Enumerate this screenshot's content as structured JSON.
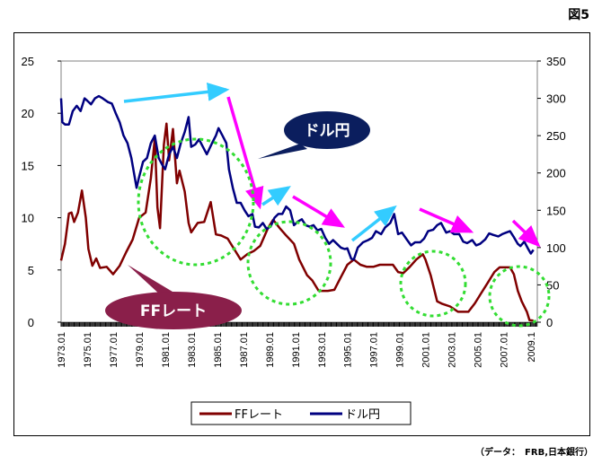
{
  "figure_label": "図5",
  "source_note": "（データ：　FRB,日本銀行）",
  "callouts": {
    "usdjpy": "ドル円",
    "ffrate": "FFレート"
  },
  "colors": {
    "ff": "#800000",
    "usdjpy": "#000080",
    "up_arrow": "#33ccff",
    "down_arrow": "#ff00ff",
    "circle": "#33dd33",
    "callout_navy": "#0b1e5e",
    "callout_maroon": "#8a1f4a"
  },
  "chart_data": {
    "type": "line",
    "x_tick_labels": [
      "1973.01",
      "1975.01",
      "1977.01",
      "1979.01",
      "1981.01",
      "1983.01",
      "1985.01",
      "1987.01",
      "1989.01",
      "1991.01",
      "1993.01",
      "1995.01",
      "1997.01",
      "1999.01",
      "2001.01",
      "2003.01",
      "2005.01",
      "2007.01",
      "2009.1"
    ],
    "y_left": {
      "ticks": [
        "0",
        "5",
        "10",
        "15",
        "20",
        "25"
      ],
      "ylim": [
        0,
        25
      ]
    },
    "y_right": {
      "ticks": [
        "0",
        "50",
        "100",
        "150",
        "200",
        "250",
        "300",
        "350"
      ],
      "ylim": [
        0,
        350
      ]
    },
    "xlim": [
      1973.0,
      2009.6
    ],
    "series": [
      {
        "name": "FFレート",
        "axis": "left",
        "points": [
          [
            1973.0,
            5.9
          ],
          [
            1973.3,
            7.5
          ],
          [
            1973.6,
            10.4
          ],
          [
            1973.8,
            10.5
          ],
          [
            1974.0,
            9.6
          ],
          [
            1974.3,
            10.5
          ],
          [
            1974.6,
            12.6
          ],
          [
            1974.9,
            10.0
          ],
          [
            1975.1,
            7.0
          ],
          [
            1975.4,
            5.4
          ],
          [
            1975.7,
            6.1
          ],
          [
            1976.0,
            5.2
          ],
          [
            1976.5,
            5.3
          ],
          [
            1977.0,
            4.6
          ],
          [
            1977.5,
            5.4
          ],
          [
            1978.0,
            6.7
          ],
          [
            1978.5,
            7.9
          ],
          [
            1979.0,
            10.0
          ],
          [
            1979.5,
            10.5
          ],
          [
            1979.9,
            13.8
          ],
          [
            1980.2,
            17.6
          ],
          [
            1980.4,
            11.0
          ],
          [
            1980.6,
            9.0
          ],
          [
            1980.9,
            17.0
          ],
          [
            1981.1,
            19.0
          ],
          [
            1981.3,
            15.5
          ],
          [
            1981.6,
            18.5
          ],
          [
            1981.9,
            13.3
          ],
          [
            1982.1,
            14.5
          ],
          [
            1982.5,
            12.5
          ],
          [
            1982.8,
            9.5
          ],
          [
            1983.0,
            8.6
          ],
          [
            1983.5,
            9.5
          ],
          [
            1984.0,
            9.6
          ],
          [
            1984.5,
            11.5
          ],
          [
            1984.9,
            8.4
          ],
          [
            1985.3,
            8.3
          ],
          [
            1985.8,
            8.0
          ],
          [
            1986.3,
            7.0
          ],
          [
            1986.8,
            6.0
          ],
          [
            1987.3,
            6.5
          ],
          [
            1987.8,
            6.8
          ],
          [
            1988.3,
            7.3
          ],
          [
            1988.9,
            9.0
          ],
          [
            1989.3,
            9.8
          ],
          [
            1989.8,
            9.0
          ],
          [
            1990.3,
            8.3
          ],
          [
            1990.9,
            7.5
          ],
          [
            1991.3,
            6.0
          ],
          [
            1991.9,
            4.5
          ],
          [
            1992.3,
            4.0
          ],
          [
            1992.8,
            3.0
          ],
          [
            1993.5,
            3.0
          ],
          [
            1994.0,
            3.1
          ],
          [
            1994.5,
            4.3
          ],
          [
            1995.0,
            5.5
          ],
          [
            1995.5,
            6.0
          ],
          [
            1996.0,
            5.5
          ],
          [
            1996.5,
            5.3
          ],
          [
            1997.0,
            5.3
          ],
          [
            1997.5,
            5.5
          ],
          [
            1998.0,
            5.5
          ],
          [
            1998.5,
            5.5
          ],
          [
            1998.9,
            4.8
          ],
          [
            1999.3,
            4.7
          ],
          [
            1999.8,
            5.3
          ],
          [
            2000.3,
            6.0
          ],
          [
            2000.8,
            6.5
          ],
          [
            2001.0,
            6.0
          ],
          [
            2001.4,
            4.5
          ],
          [
            2001.9,
            2.0
          ],
          [
            2002.3,
            1.75
          ],
          [
            2002.9,
            1.5
          ],
          [
            2003.5,
            1.0
          ],
          [
            2004.3,
            1.0
          ],
          [
            2004.8,
            1.8
          ],
          [
            2005.3,
            2.8
          ],
          [
            2005.8,
            3.8
          ],
          [
            2006.3,
            4.8
          ],
          [
            2006.7,
            5.25
          ],
          [
            2007.5,
            5.25
          ],
          [
            2007.8,
            4.6
          ],
          [
            2008.1,
            3.0
          ],
          [
            2008.4,
            2.0
          ],
          [
            2008.8,
            1.0
          ],
          [
            2009.0,
            0.2
          ],
          [
            2009.3,
            0.15
          ]
        ]
      },
      {
        "name": "ドル円",
        "axis": "right",
        "points": [
          [
            1973.0,
            300
          ],
          [
            1973.1,
            268
          ],
          [
            1973.3,
            265
          ],
          [
            1973.6,
            265
          ],
          [
            1973.9,
            283
          ],
          [
            1974.2,
            290
          ],
          [
            1974.5,
            283
          ],
          [
            1974.8,
            300
          ],
          [
            1975.0,
            297
          ],
          [
            1975.3,
            292
          ],
          [
            1975.6,
            300
          ],
          [
            1975.9,
            303
          ],
          [
            1976.2,
            300
          ],
          [
            1976.6,
            295
          ],
          [
            1976.9,
            293
          ],
          [
            1977.2,
            280
          ],
          [
            1977.5,
            268
          ],
          [
            1977.8,
            250
          ],
          [
            1978.1,
            240
          ],
          [
            1978.4,
            220
          ],
          [
            1978.6,
            200
          ],
          [
            1978.8,
            180
          ],
          [
            1979.0,
            195
          ],
          [
            1979.3,
            215
          ],
          [
            1979.6,
            220
          ],
          [
            1979.9,
            240
          ],
          [
            1980.2,
            250
          ],
          [
            1980.5,
            220
          ],
          [
            1980.8,
            210
          ],
          [
            1981.0,
            205
          ],
          [
            1981.3,
            225
          ],
          [
            1981.6,
            235
          ],
          [
            1981.9,
            220
          ],
          [
            1982.2,
            240
          ],
          [
            1982.5,
            255
          ],
          [
            1982.8,
            275
          ],
          [
            1983.0,
            235
          ],
          [
            1983.3,
            238
          ],
          [
            1983.6,
            245
          ],
          [
            1983.9,
            235
          ],
          [
            1984.2,
            225
          ],
          [
            1984.6,
            240
          ],
          [
            1984.9,
            250
          ],
          [
            1985.1,
            260
          ],
          [
            1985.4,
            250
          ],
          [
            1985.7,
            240
          ],
          [
            1985.9,
            205
          ],
          [
            1986.2,
            180
          ],
          [
            1986.5,
            160
          ],
          [
            1986.8,
            160
          ],
          [
            1987.1,
            150
          ],
          [
            1987.4,
            142
          ],
          [
            1987.7,
            145
          ],
          [
            1987.9,
            128
          ],
          [
            1988.2,
            127
          ],
          [
            1988.5,
            133
          ],
          [
            1988.8,
            125
          ],
          [
            1989.1,
            128
          ],
          [
            1989.4,
            140
          ],
          [
            1989.7,
            145
          ],
          [
            1990.0,
            145
          ],
          [
            1990.3,
            155
          ],
          [
            1990.6,
            150
          ],
          [
            1990.9,
            130
          ],
          [
            1991.2,
            135
          ],
          [
            1991.5,
            138
          ],
          [
            1991.8,
            130
          ],
          [
            1992.1,
            128
          ],
          [
            1992.4,
            130
          ],
          [
            1992.7,
            123
          ],
          [
            1993.0,
            125
          ],
          [
            1993.3,
            113
          ],
          [
            1993.6,
            105
          ],
          [
            1993.9,
            110
          ],
          [
            1994.2,
            105
          ],
          [
            1994.5,
            100
          ],
          [
            1994.8,
            98
          ],
          [
            1995.0,
            99
          ],
          [
            1995.3,
            85
          ],
          [
            1995.5,
            84
          ],
          [
            1995.8,
            100
          ],
          [
            1996.2,
            107
          ],
          [
            1996.6,
            110
          ],
          [
            1996.9,
            113
          ],
          [
            1997.2,
            122
          ],
          [
            1997.6,
            118
          ],
          [
            1997.9,
            127
          ],
          [
            1998.3,
            133
          ],
          [
            1998.6,
            145
          ],
          [
            1998.9,
            118
          ],
          [
            1999.2,
            120
          ],
          [
            1999.6,
            110
          ],
          [
            1999.9,
            103
          ],
          [
            2000.2,
            107
          ],
          [
            2000.6,
            107
          ],
          [
            2000.9,
            112
          ],
          [
            2001.2,
            122
          ],
          [
            2001.6,
            124
          ],
          [
            2001.9,
            130
          ],
          [
            2002.2,
            133
          ],
          [
            2002.6,
            120
          ],
          [
            2002.9,
            122
          ],
          [
            2003.2,
            118
          ],
          [
            2003.6,
            118
          ],
          [
            2003.9,
            108
          ],
          [
            2004.2,
            106
          ],
          [
            2004.6,
            110
          ],
          [
            2004.9,
            103
          ],
          [
            2005.2,
            105
          ],
          [
            2005.6,
            111
          ],
          [
            2005.9,
            119
          ],
          [
            2006.2,
            117
          ],
          [
            2006.6,
            115
          ],
          [
            2006.9,
            118
          ],
          [
            2007.2,
            120
          ],
          [
            2007.5,
            122
          ],
          [
            2007.8,
            114
          ],
          [
            2008.1,
            105
          ],
          [
            2008.3,
            102
          ],
          [
            2008.6,
            108
          ],
          [
            2008.9,
            98
          ],
          [
            2009.1,
            92
          ],
          [
            2009.3,
            97
          ]
        ]
      }
    ],
    "legend": {
      "position": "bottom",
      "entries": [
        "FFレート",
        "ドル円"
      ]
    },
    "grid": false
  }
}
